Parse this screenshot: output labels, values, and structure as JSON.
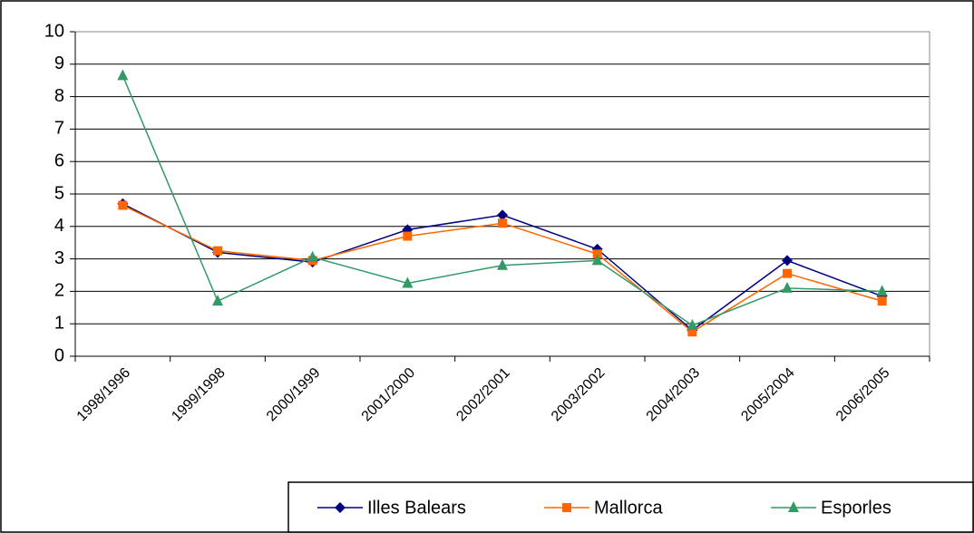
{
  "chart_data": {
    "type": "line",
    "categories": [
      "1998/1996",
      "1999/1998",
      "2000/1999",
      "2001/2000",
      "2002/2001",
      "2003/2002",
      "2004/2003",
      "2005/2004",
      "2006/2005"
    ],
    "series": [
      {
        "name": "Illes Balears",
        "color": "#000080",
        "marker": "diamond",
        "values": [
          4.7,
          3.2,
          2.9,
          3.9,
          4.35,
          3.3,
          0.8,
          2.95,
          1.85
        ]
      },
      {
        "name": "Mallorca",
        "color": "#ff6600",
        "marker": "square",
        "values": [
          4.65,
          3.25,
          2.95,
          3.7,
          4.1,
          3.15,
          0.75,
          2.55,
          1.7
        ]
      },
      {
        "name": "Esporles",
        "color": "#339966",
        "marker": "triangle",
        "values": [
          8.65,
          1.7,
          3.05,
          2.25,
          2.8,
          2.95,
          0.95,
          2.1,
          2.0
        ]
      }
    ],
    "ylim": [
      0,
      10
    ],
    "yticks": [
      0,
      1,
      2,
      3,
      4,
      5,
      6,
      7,
      8,
      9,
      10
    ],
    "grid": true,
    "legend": "bottom"
  }
}
